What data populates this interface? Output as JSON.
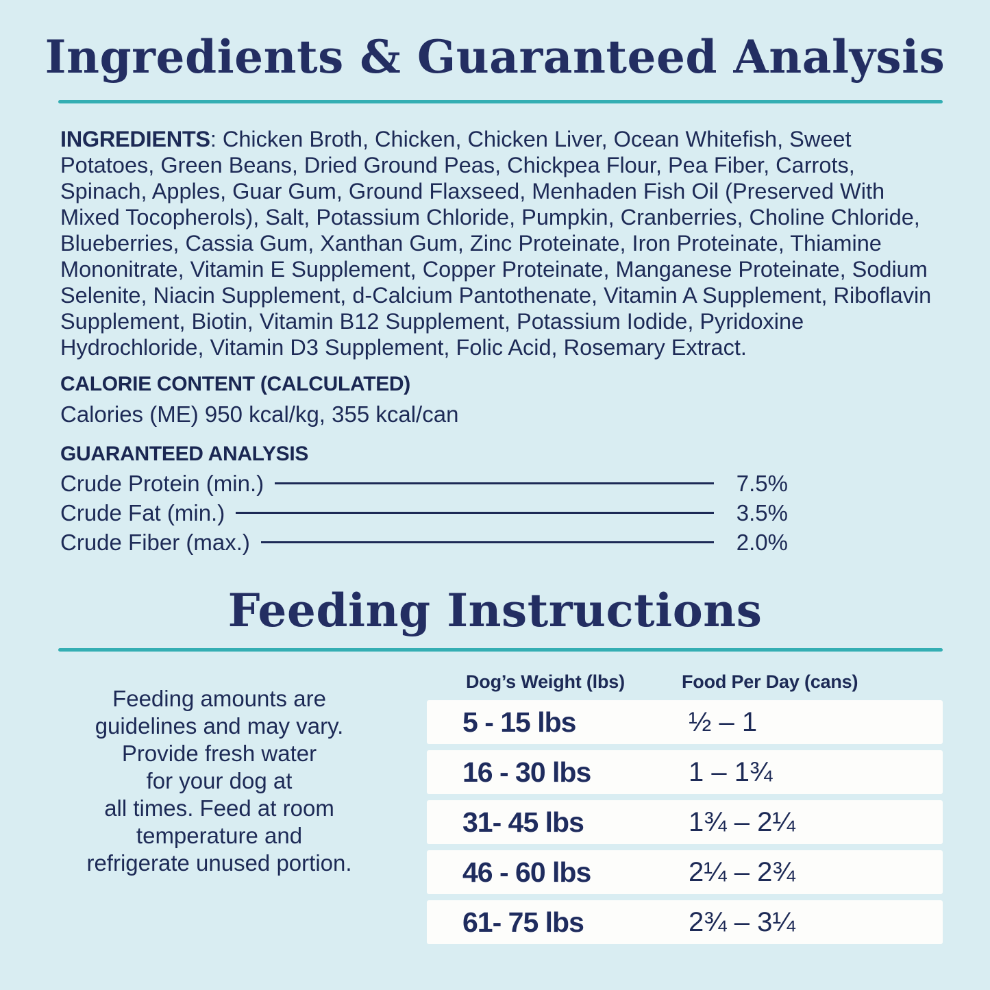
{
  "theme": {
    "background": "#d9edf2",
    "text_navy": "#1d2a56",
    "title_navy": "#232e62",
    "accent_teal": "#34aeb3",
    "row_white": "#fdfdfb"
  },
  "ingredients_section": {
    "title": "Ingredients & Guaranteed Analysis",
    "ingredients_label": "INGREDIENTS",
    "ingredients_text": ": Chicken Broth, Chicken, Chicken Liver, Ocean Whitefish, Sweet Potatoes, Green Beans, Dried Ground Peas, Chickpea Flour, Pea Fiber, Carrots, Spinach, Apples, Guar Gum, Ground Flaxseed, Menhaden Fish Oil (Preserved With Mixed Tocopherols), Salt, Potassium Chloride, Pumpkin, Cranberries, Choline Chloride, Blueberries, Cassia Gum, Xanthan Gum, Zinc Proteinate, Iron Proteinate, Thiamine Mononitrate, Vitamin E Supplement, Copper Proteinate, Manganese Proteinate, Sodium Selenite, Niacin Supplement, d-Calcium Pantothenate, Vitamin A Supplement, Riboflavin Supplement, Biotin, Vitamin B12 Supplement, Potassium Iodide, Pyridoxine Hydrochloride, Vitamin D3 Supplement, Folic Acid, Rosemary Extract.",
    "calorie_heading": "CALORIE CONTENT (CALCULATED)",
    "calorie_line": "Calories (ME) 950 kcal/kg, 355 kcal/can",
    "analysis_heading": "GUARANTEED ANALYSIS",
    "analysis_rows": [
      {
        "label": "Crude Protein (min.)",
        "value": "7.5%"
      },
      {
        "label": "Crude Fat (min.)",
        "value": "3.5%"
      },
      {
        "label": "Crude Fiber (max.)",
        "value": "2.0%"
      }
    ]
  },
  "feeding_section": {
    "title": "Feeding Instructions",
    "note": "Feeding amounts are\nguidelines and may vary.\nProvide fresh water\nfor your dog at\nall times. Feed at room\ntemperature and\nrefrigerate unused portion.",
    "table": {
      "weight_header": "Dog’s Weight (lbs)",
      "food_header": "Food Per Day (cans)",
      "rows": [
        {
          "weight": "5 - 15 lbs",
          "food": "½ – 1"
        },
        {
          "weight": "16 - 30 lbs",
          "food": "1 – 1¾"
        },
        {
          "weight": "31- 45 lbs",
          "food": "1¾ – 2¼"
        },
        {
          "weight": "46 - 60 lbs",
          "food": "2¼ – 2¾"
        },
        {
          "weight": "61- 75 lbs",
          "food": "2¾ – 3¼"
        }
      ]
    }
  }
}
